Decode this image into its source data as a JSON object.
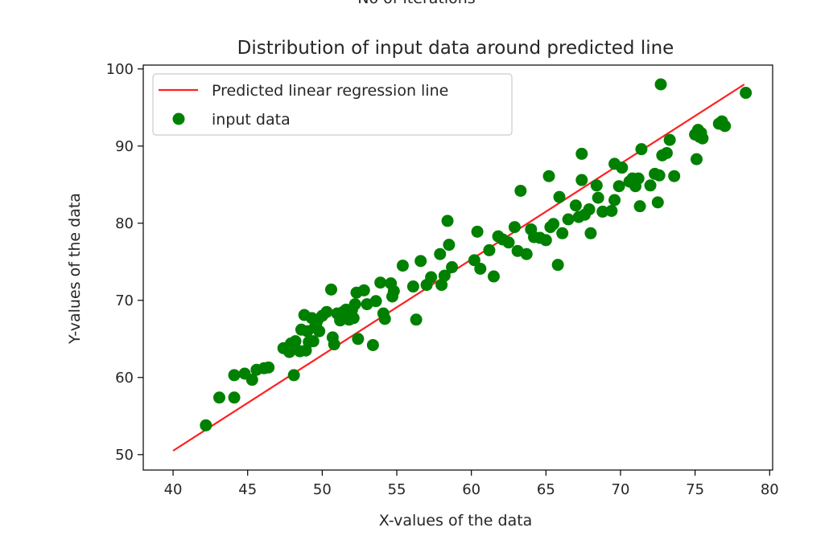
{
  "cut_off_heading": "No of iterations",
  "chart_data": {
    "type": "scatter",
    "title": "Distribution of input data around predicted line",
    "xlabel": "X-values of the data",
    "ylabel": "Y-values of the data",
    "xlim": [
      38,
      80.2
    ],
    "ylim": [
      48,
      100.5
    ],
    "xticks": [
      "40",
      "45",
      "50",
      "55",
      "60",
      "65",
      "70",
      "75",
      "80"
    ],
    "yticks": [
      "50",
      "60",
      "70",
      "80",
      "90",
      "100"
    ],
    "grid": false,
    "legend_position": "top-left",
    "legend": [
      {
        "label": "Predicted linear regression line",
        "kind": "line",
        "color": "#ff2020"
      },
      {
        "label": "input data",
        "kind": "marker",
        "color": "#008000"
      }
    ],
    "series": [
      {
        "name": "Predicted linear regression line",
        "kind": "line",
        "color": "#ff2020",
        "x": [
          40.0,
          78.3
        ],
        "y": [
          50.5,
          98.0
        ]
      },
      {
        "name": "input data",
        "kind": "scatter",
        "color": "#008000",
        "points": [
          [
            42.2,
            53.8
          ],
          [
            43.1,
            57.4
          ],
          [
            44.1,
            57.4
          ],
          [
            44.1,
            60.3
          ],
          [
            44.8,
            60.5
          ],
          [
            45.3,
            59.7
          ],
          [
            45.6,
            61.0
          ],
          [
            46.1,
            61.2
          ],
          [
            46.4,
            61.3
          ],
          [
            47.4,
            63.8
          ],
          [
            47.8,
            63.3
          ],
          [
            47.9,
            64.4
          ],
          [
            48.1,
            60.3
          ],
          [
            48.2,
            64.7
          ],
          [
            48.5,
            63.4
          ],
          [
            48.6,
            66.2
          ],
          [
            48.8,
            68.1
          ],
          [
            48.9,
            63.5
          ],
          [
            49.0,
            66.0
          ],
          [
            49.1,
            64.6
          ],
          [
            49.3,
            67.7
          ],
          [
            49.4,
            64.7
          ],
          [
            49.5,
            66.5
          ],
          [
            49.6,
            67.0
          ],
          [
            49.7,
            67.5
          ],
          [
            49.8,
            66.0
          ],
          [
            50.0,
            68.0
          ],
          [
            50.3,
            68.5
          ],
          [
            50.6,
            71.4
          ],
          [
            50.7,
            65.2
          ],
          [
            50.8,
            64.3
          ],
          [
            51.0,
            68.3
          ],
          [
            51.2,
            67.4
          ],
          [
            51.4,
            68.5
          ],
          [
            51.6,
            68.8
          ],
          [
            51.8,
            67.5
          ],
          [
            52.0,
            68.8
          ],
          [
            52.1,
            67.7
          ],
          [
            52.2,
            69.5
          ],
          [
            52.3,
            71.0
          ],
          [
            52.4,
            65.0
          ],
          [
            52.8,
            71.3
          ],
          [
            53.0,
            69.5
          ],
          [
            53.4,
            64.2
          ],
          [
            53.6,
            69.9
          ],
          [
            53.9,
            72.3
          ],
          [
            54.1,
            68.3
          ],
          [
            54.2,
            67.6
          ],
          [
            54.6,
            72.2
          ],
          [
            54.7,
            70.5
          ],
          [
            54.8,
            71.2
          ],
          [
            55.4,
            74.5
          ],
          [
            56.1,
            71.8
          ],
          [
            56.3,
            67.5
          ],
          [
            56.6,
            75.1
          ],
          [
            57.0,
            72.0
          ],
          [
            57.3,
            73.0
          ],
          [
            57.9,
            76.0
          ],
          [
            58.0,
            72.0
          ],
          [
            58.2,
            73.2
          ],
          [
            58.4,
            80.3
          ],
          [
            58.5,
            77.2
          ],
          [
            58.7,
            74.3
          ],
          [
            60.2,
            75.2
          ],
          [
            60.4,
            78.9
          ],
          [
            60.6,
            74.1
          ],
          [
            61.2,
            76.5
          ],
          [
            61.5,
            73.1
          ],
          [
            61.8,
            78.3
          ],
          [
            62.1,
            77.9
          ],
          [
            62.5,
            77.5
          ],
          [
            62.9,
            79.5
          ],
          [
            63.1,
            76.4
          ],
          [
            63.3,
            84.2
          ],
          [
            63.7,
            76.0
          ],
          [
            64.0,
            79.2
          ],
          [
            64.2,
            78.2
          ],
          [
            64.6,
            78.1
          ],
          [
            65.0,
            77.8
          ],
          [
            65.2,
            86.1
          ],
          [
            65.3,
            79.5
          ],
          [
            65.5,
            79.9
          ],
          [
            65.8,
            74.6
          ],
          [
            65.9,
            83.4
          ],
          [
            66.1,
            78.7
          ],
          [
            66.5,
            80.5
          ],
          [
            67.0,
            82.3
          ],
          [
            67.2,
            80.8
          ],
          [
            67.4,
            89.0
          ],
          [
            67.4,
            85.6
          ],
          [
            67.6,
            81.1
          ],
          [
            67.9,
            81.8
          ],
          [
            68.0,
            78.7
          ],
          [
            68.4,
            84.9
          ],
          [
            68.5,
            83.3
          ],
          [
            68.8,
            81.5
          ],
          [
            69.4,
            81.6
          ],
          [
            69.6,
            87.7
          ],
          [
            69.6,
            83.0
          ],
          [
            69.9,
            84.8
          ],
          [
            70.1,
            87.2
          ],
          [
            70.6,
            85.4
          ],
          [
            70.8,
            85.8
          ],
          [
            71.0,
            84.8
          ],
          [
            71.2,
            85.8
          ],
          [
            71.3,
            82.2
          ],
          [
            71.4,
            89.6
          ],
          [
            72.0,
            84.9
          ],
          [
            72.3,
            86.4
          ],
          [
            72.5,
            82.7
          ],
          [
            72.6,
            86.2
          ],
          [
            72.7,
            98.0
          ],
          [
            72.8,
            88.8
          ],
          [
            73.1,
            89.1
          ],
          [
            73.3,
            90.8
          ],
          [
            73.6,
            86.1
          ],
          [
            75.0,
            91.5
          ],
          [
            75.1,
            88.3
          ],
          [
            75.2,
            92.1
          ],
          [
            75.3,
            91.2
          ],
          [
            75.4,
            91.7
          ],
          [
            75.5,
            91.0
          ],
          [
            76.6,
            92.9
          ],
          [
            76.8,
            93.2
          ],
          [
            77.0,
            92.6
          ],
          [
            78.4,
            96.9
          ]
        ]
      }
    ]
  }
}
